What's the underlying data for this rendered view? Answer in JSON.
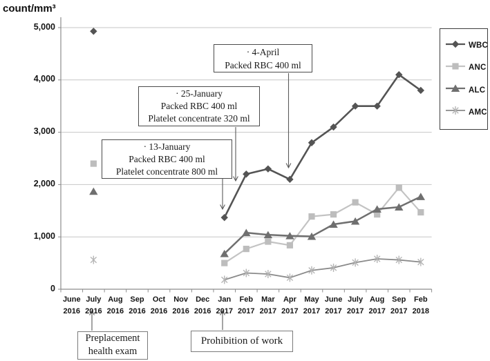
{
  "chart_data": {
    "type": "line",
    "title": "count/mm³",
    "ylabel": "count/mm³",
    "xlabel": "",
    "ylim": [
      0,
      5000
    ],
    "grid": true,
    "legend_position": "right",
    "yticks": [
      {
        "value": 0,
        "label": "0"
      },
      {
        "value": 1000,
        "label": "1,000"
      },
      {
        "value": 2000,
        "label": "2,000"
      },
      {
        "value": 3000,
        "label": "3,000"
      },
      {
        "value": 4000,
        "label": "4,000"
      },
      {
        "value": 5000,
        "label": "5,000"
      }
    ],
    "categories": [
      {
        "month": "June",
        "year": "2016"
      },
      {
        "month": "July",
        "year": "2016"
      },
      {
        "month": "Aug",
        "year": "2016"
      },
      {
        "month": "Sep",
        "year": "2016"
      },
      {
        "month": "Oct",
        "year": "2016"
      },
      {
        "month": "Nov",
        "year": "2016"
      },
      {
        "month": "Dec",
        "year": "2016"
      },
      {
        "month": "Jan",
        "year": "2017"
      },
      {
        "month": "Feb",
        "year": "2017"
      },
      {
        "month": "Mar",
        "year": "2017"
      },
      {
        "month": "Apr",
        "year": "2017"
      },
      {
        "month": "May",
        "year": "2017"
      },
      {
        "month": "June",
        "year": "2017"
      },
      {
        "month": "July",
        "year": "2017"
      },
      {
        "month": "Aug",
        "year": "2017"
      },
      {
        "month": "Sep",
        "year": "2017"
      },
      {
        "month": "Feb",
        "year": "2018"
      }
    ],
    "series": [
      {
        "name": "WBC",
        "marker": "diamond",
        "color": "#545454",
        "marker_color": "#545454",
        "values": [
          null,
          4930,
          null,
          null,
          null,
          null,
          null,
          1370,
          2200,
          2300,
          2100,
          2800,
          3100,
          3500,
          3500,
          4100,
          3800
        ]
      },
      {
        "name": "ANC",
        "marker": "square",
        "color": "#c3c3c3",
        "marker_color": "#bdbdbd",
        "values": [
          null,
          2400,
          null,
          null,
          null,
          null,
          null,
          500,
          770,
          910,
          840,
          1390,
          1430,
          1660,
          1430,
          1940,
          1470
        ]
      },
      {
        "name": "ALC",
        "marker": "triangle",
        "color": "#6f6f6f",
        "marker_color": "#6f6f6f",
        "values": [
          null,
          1870,
          null,
          null,
          null,
          null,
          null,
          680,
          1080,
          1040,
          1020,
          1010,
          1240,
          1300,
          1530,
          1570,
          1770
        ]
      },
      {
        "name": "AMC",
        "marker": "asterisk",
        "color": "#8a8a8a",
        "marker_color": "#b5b5b5",
        "values": [
          null,
          560,
          null,
          null,
          null,
          null,
          null,
          180,
          310,
          290,
          220,
          360,
          410,
          510,
          580,
          560,
          520
        ]
      }
    ]
  },
  "annotations": {
    "april4": {
      "line1": "· 4-April",
      "line2": "Packed RBC 400 ml"
    },
    "jan25": {
      "line1": "· 25-January",
      "line2": "Packed RBC 400 ml",
      "line3": "Platelet concentrate 320 ml"
    },
    "jan13": {
      "line1": "· 13-January",
      "line2": "Packed RBC 400 ml",
      "line3": "Platelet concentrate 800 ml"
    },
    "preplacement": {
      "line1": "Preplacement",
      "line2": "health exam"
    },
    "prohibition": {
      "line1": "Prohibition of work"
    }
  },
  "colors": {
    "grid": "#c6c6c6",
    "axis": "#8c8c8c",
    "arrow": "#5a5a5a",
    "text": "#111111"
  }
}
